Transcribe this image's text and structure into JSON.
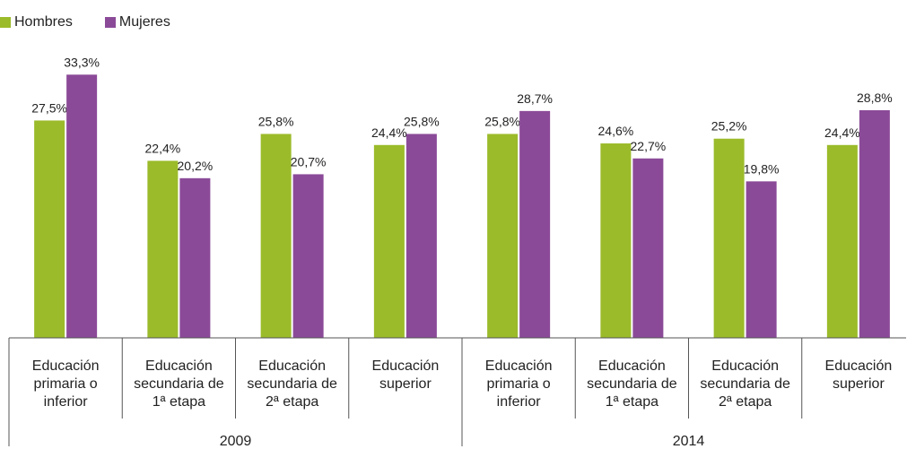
{
  "chart_data": {
    "type": "bar",
    "groups": [
      {
        "label": "2009",
        "categories": [
          [
            "Educación",
            "primaria o",
            "inferior"
          ],
          [
            "Educación",
            "secundaria de",
            "1ª etapa"
          ],
          [
            "Educación",
            "secundaria de",
            "2ª etapa"
          ],
          [
            "Educación",
            "superior"
          ]
        ]
      },
      {
        "label": "2014",
        "categories": [
          [
            "Educación",
            "primaria o",
            "inferior"
          ],
          [
            "Educación",
            "secundaria de",
            "1ª etapa"
          ],
          [
            "Educación",
            "secundaria de",
            "2ª etapa"
          ],
          [
            "Educación",
            "superior"
          ]
        ]
      }
    ],
    "series": [
      {
        "name": "Hombres",
        "color": "#9bbb2a",
        "values": [
          27.5,
          22.4,
          25.8,
          24.4,
          25.8,
          24.6,
          25.2,
          24.4
        ],
        "labels": [
          "27,5%",
          "22,4%",
          "25,8%",
          "24,4%",
          "25,8%",
          "24,6%",
          "25,2%",
          "24,4%"
        ]
      },
      {
        "name": "Mujeres",
        "color": "#8b4a98",
        "values": [
          33.3,
          20.2,
          20.7,
          25.8,
          28.7,
          22.7,
          19.8,
          28.8
        ],
        "labels": [
          "33,3%",
          "20,2%",
          "20,7%",
          "25,8%",
          "28,7%",
          "22,7%",
          "19,8%",
          "28,8%"
        ]
      }
    ],
    "ylim": [
      0,
      35
    ],
    "grid": false,
    "legend": "top-left"
  }
}
